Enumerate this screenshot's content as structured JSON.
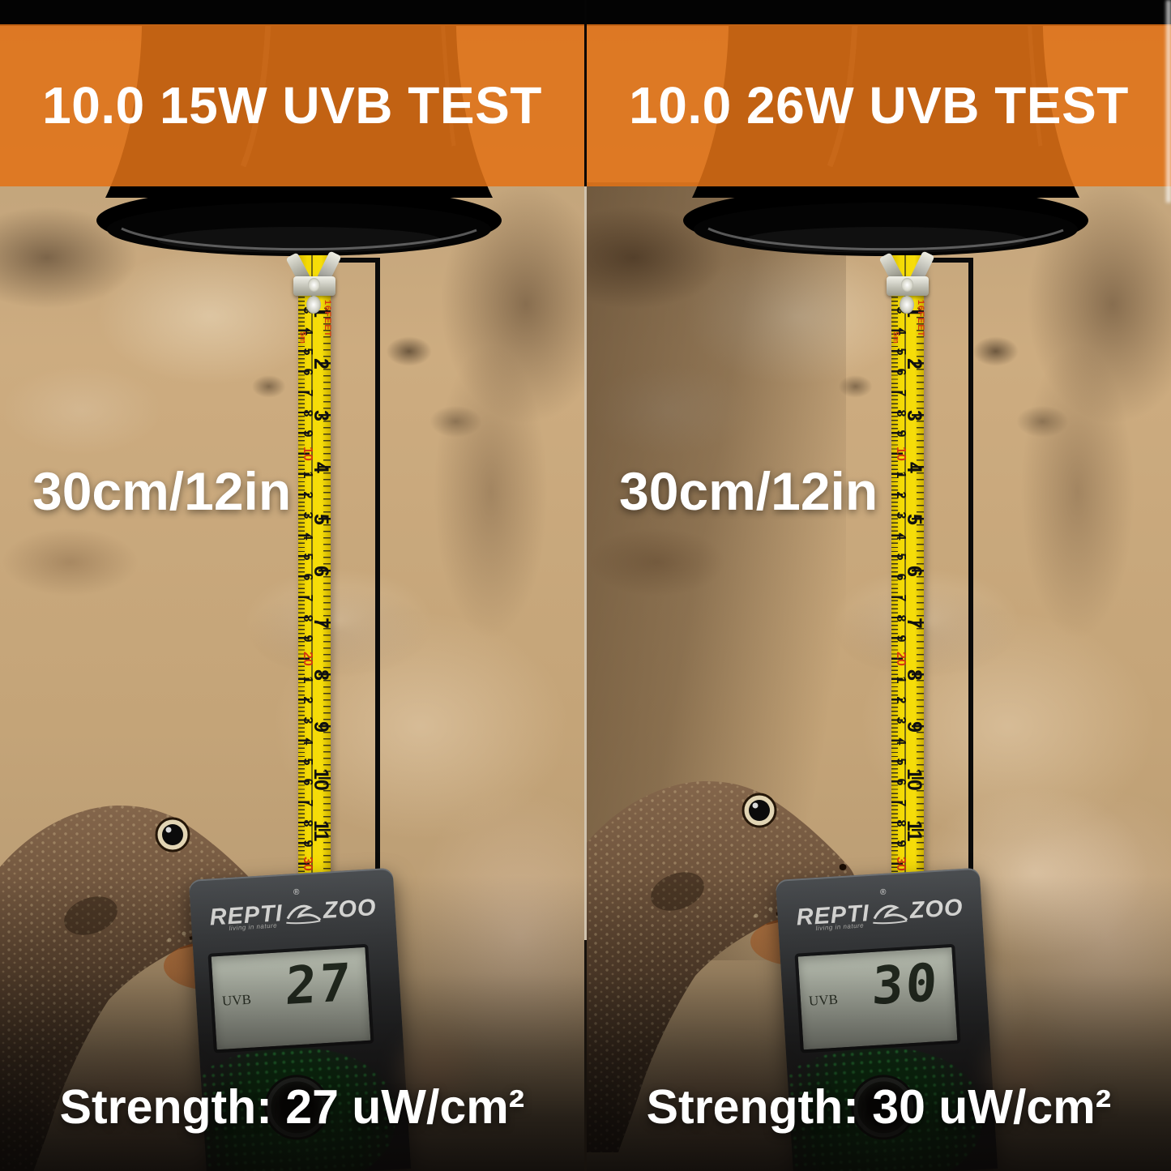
{
  "panels": [
    {
      "header": "10.0 15W UVB TEST",
      "distance": "30cm/12in",
      "strength": "Strength: 27 uW/cm²",
      "meter_reading": "27"
    },
    {
      "header": "10.0 26W UVB TEST",
      "distance": "30cm/12in",
      "strength": "Strength: 30 uW/cm²",
      "meter_reading": "30"
    }
  ],
  "meter": {
    "brand_left": "REPTI",
    "brand_right": "ZOO",
    "registered_mark": "®",
    "tagline": "living in nature",
    "lcd_mode": "UVB"
  },
  "tape": {
    "cm_labels": [
      "2",
      "3",
      "4",
      "5",
      "6",
      "7",
      "8",
      "9",
      "10",
      "1",
      "2",
      "3",
      "4",
      "5",
      "6",
      "7",
      "8",
      "9",
      "20",
      "1",
      "2",
      "3",
      "4",
      "5",
      "6",
      "7",
      "8",
      "9",
      "30"
    ],
    "cm_red": [
      "10",
      "20",
      "30"
    ],
    "inch_labels": [
      "1",
      "2",
      "3",
      "4",
      "5",
      "6",
      "7",
      "8",
      "9",
      "10",
      "11",
      "1F"
    ],
    "inch_red": [
      "1F"
    ],
    "side_text_1": "16FEET",
    "side_text_2": "5m"
  },
  "colors": {
    "banner_orange": "#E2731E",
    "tape_yellow": "#F4DA05",
    "tape_red_marking": "#D43A10",
    "lcd_background": "#CDD4C6",
    "background_tan": "#C6A57C",
    "text_white": "#FFFFFF"
  }
}
